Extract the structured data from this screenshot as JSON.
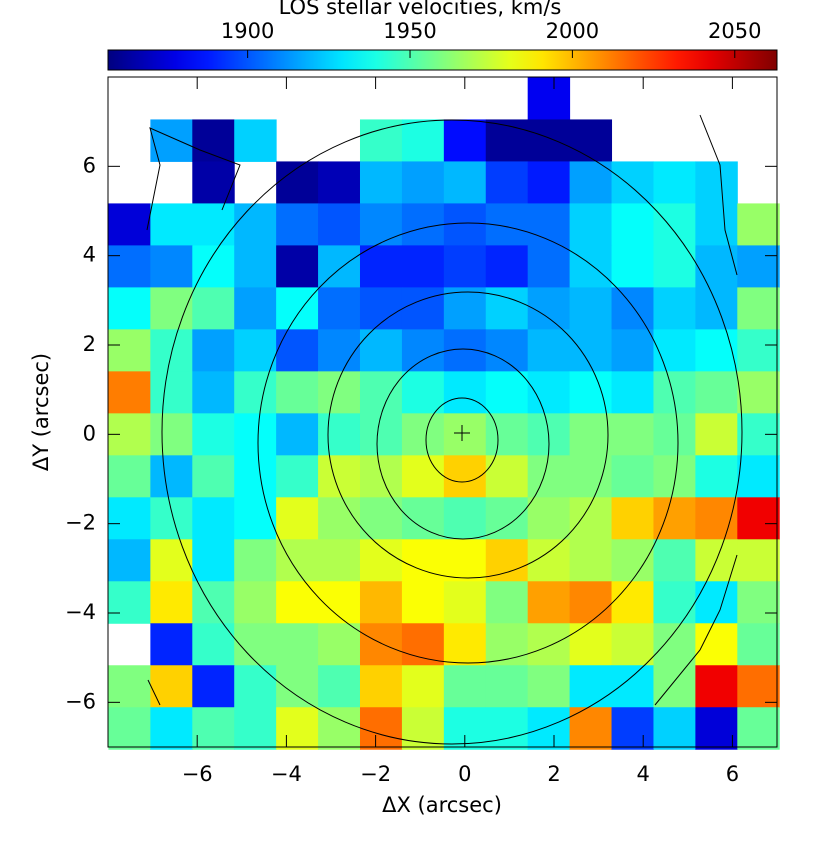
{
  "chart_data": {
    "type": "heatmap",
    "colorbar_title": "LOS stellar velocities, km/s",
    "x_label": "ΔX (arcsec)",
    "y_label": "ΔY (arcsec)",
    "xlim": [
      -8,
      7
    ],
    "ylim": [
      -7,
      8
    ],
    "xticks": [
      {
        "value": -6,
        "label": "−6"
      },
      {
        "value": -4,
        "label": "−4"
      },
      {
        "value": -2,
        "label": "−2"
      },
      0,
      2,
      4,
      6
    ],
    "yticks": [
      {
        "value": -6,
        "label": "−6"
      },
      {
        "value": -4,
        "label": "−4"
      },
      {
        "value": -2,
        "label": "−2"
      },
      0,
      2,
      4,
      6
    ],
    "clim": [
      1857,
      2063
    ],
    "cticks": [
      1900,
      1950,
      2000,
      2050
    ],
    "colormap": "jet",
    "x": [
      -7.52,
      -6.58,
      -5.64,
      -4.7,
      -3.76,
      -2.82,
      -1.88,
      -0.94,
      0,
      0.94,
      1.88,
      2.82,
      3.76,
      4.7,
      5.64,
      6.58
    ],
    "y": [
      7.52,
      6.58,
      5.64,
      4.7,
      3.76,
      2.82,
      1.88,
      0.94,
      0,
      -0.94,
      -1.88,
      -2.82,
      -3.76,
      -4.7,
      -5.64,
      -6.58
    ],
    "z": [
      [
        null,
        null,
        null,
        null,
        null,
        null,
        null,
        null,
        null,
        null,
        1880,
        null,
        null,
        null,
        null,
        null
      ],
      [
        null,
        1915,
        1862,
        1925,
        null,
        null,
        1945,
        1940,
        1885,
        1862,
        1862,
        1862,
        null,
        null,
        null,
        null
      ],
      [
        null,
        null,
        1865,
        null,
        1862,
        1868,
        1920,
        1915,
        1920,
        1895,
        1888,
        1915,
        1925,
        1930,
        1925,
        null
      ],
      [
        1875,
        1930,
        1930,
        1920,
        1905,
        1900,
        1910,
        1905,
        1900,
        1905,
        1905,
        1925,
        1935,
        1940,
        1925,
        1965
      ],
      [
        1905,
        1910,
        1935,
        1920,
        1865,
        1920,
        1890,
        1890,
        1895,
        1890,
        1905,
        1925,
        1935,
        1940,
        1920,
        1915
      ],
      [
        1935,
        1960,
        1950,
        1915,
        1935,
        1905,
        1900,
        1900,
        1915,
        1925,
        1915,
        1920,
        1910,
        1925,
        1920,
        1960
      ],
      [
        1965,
        1945,
        1915,
        1925,
        1900,
        1910,
        1920,
        1910,
        1905,
        1910,
        1920,
        1920,
        1915,
        1930,
        1935,
        1945
      ],
      [
        2012,
        1945,
        1920,
        1945,
        1955,
        1960,
        1950,
        1940,
        1930,
        1935,
        1930,
        1935,
        1930,
        1950,
        1955,
        1965
      ],
      [
        1970,
        1960,
        1940,
        1935,
        1920,
        1945,
        1950,
        1960,
        1965,
        1955,
        1950,
        1960,
        1960,
        1955,
        1975,
        1945
      ],
      [
        1955,
        1920,
        1950,
        1935,
        1945,
        1975,
        1970,
        1980,
        1995,
        1975,
        1960,
        1960,
        1955,
        1960,
        1940,
        1930
      ],
      [
        1930,
        1945,
        1930,
        1935,
        1980,
        1965,
        1960,
        1955,
        1950,
        1955,
        1965,
        1970,
        1995,
        2005,
        2010,
        2040
      ],
      [
        1920,
        1980,
        1930,
        1960,
        1970,
        1970,
        1980,
        1985,
        1985,
        1995,
        1975,
        1970,
        1965,
        1950,
        1975,
        1975
      ],
      [
        1945,
        1990,
        1950,
        1965,
        1985,
        1985,
        2000,
        1985,
        1980,
        1960,
        2005,
        2010,
        1990,
        1945,
        1930,
        1960
      ],
      [
        null,
        1890,
        1945,
        1960,
        1960,
        1965,
        2010,
        2015,
        1990,
        1965,
        1970,
        1980,
        1975,
        1960,
        1985,
        1955
      ],
      [
        1960,
        1995,
        1890,
        1945,
        1960,
        1950,
        1995,
        1980,
        1955,
        1955,
        1960,
        1930,
        1930,
        1960,
        2040,
        2015
      ],
      [
        1955,
        1930,
        1950,
        1945,
        1980,
        1965,
        2015,
        1975,
        1940,
        1940,
        1930,
        2010,
        1895,
        1925,
        1875,
        1955
      ]
    ]
  }
}
